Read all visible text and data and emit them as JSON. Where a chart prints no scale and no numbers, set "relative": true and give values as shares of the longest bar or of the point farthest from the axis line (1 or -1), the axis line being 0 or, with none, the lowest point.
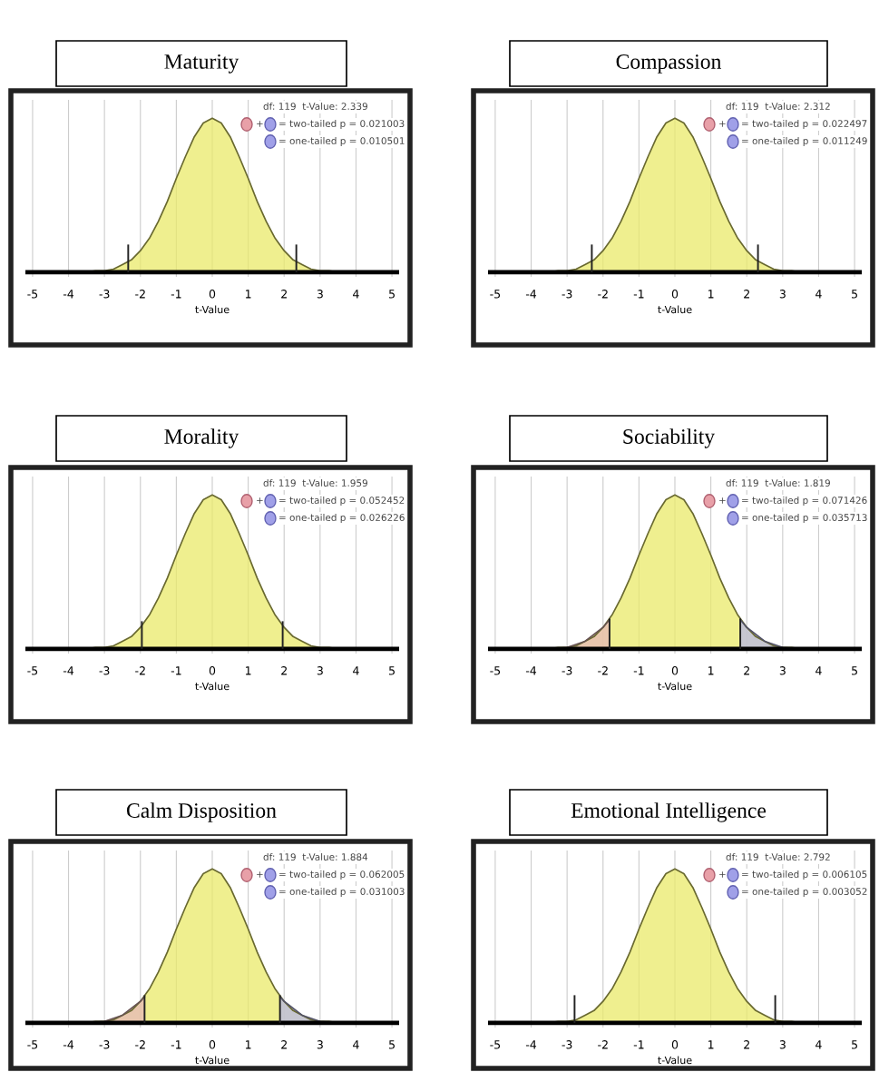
{
  "chart_data": [
    {
      "type": "area",
      "title": "Maturity",
      "relative": true,
      "xlabel": "t-Value",
      "x": [
        -5,
        -4.75,
        -4.5,
        -4.25,
        -4,
        -3.75,
        -3.5,
        -3.25,
        -3,
        -2.75,
        -2.5,
        -2.25,
        -2,
        -1.75,
        -1.5,
        -1.25,
        -1,
        -0.75,
        -0.5,
        -0.25,
        0,
        0.25,
        0.5,
        0.75,
        1,
        1.25,
        1.5,
        1.75,
        2,
        2.25,
        2.5,
        2.75,
        3,
        3.25,
        3.5,
        3.75,
        4,
        4.25,
        4.5,
        4.75,
        5
      ],
      "series": [
        {
          "color": "#eaea6a",
          "values": [
            0,
            0,
            0,
            0,
            0,
            0,
            0,
            0.01,
            0.01,
            0.02,
            0.05,
            0.08,
            0.14,
            0.22,
            0.33,
            0.46,
            0.61,
            0.75,
            0.88,
            0.97,
            1,
            0.97,
            0.88,
            0.75,
            0.61,
            0.46,
            0.33,
            0.22,
            0.14,
            0.08,
            0.05,
            0.02,
            0.01,
            0.01,
            0,
            0,
            0,
            0,
            0,
            0,
            0
          ]
        }
      ],
      "xlim": [
        -5.2,
        5.2
      ],
      "xticks": [
        -5,
        -4,
        -3,
        -2,
        -1,
        0,
        1,
        2,
        3,
        4,
        5
      ],
      "grid": "x",
      "ref_lines": [
        {
          "axis": "x",
          "value": -2.339,
          "color": "#222222"
        },
        {
          "axis": "x",
          "value": 2.339,
          "color": "#222222"
        }
      ],
      "annotations": [
        "df: 119  t-Value: 2.339",
        "+",
        "= two-tailed p = 0.021003",
        "= one-tailed p = 0.010501"
      ]
    },
    {
      "type": "area",
      "title": "Compassion",
      "relative": true,
      "xlabel": "t-Value",
      "x": [
        -5,
        -4.75,
        -4.5,
        -4.25,
        -4,
        -3.75,
        -3.5,
        -3.25,
        -3,
        -2.75,
        -2.5,
        -2.25,
        -2,
        -1.75,
        -1.5,
        -1.25,
        -1,
        -0.75,
        -0.5,
        -0.25,
        0,
        0.25,
        0.5,
        0.75,
        1,
        1.25,
        1.5,
        1.75,
        2,
        2.25,
        2.5,
        2.75,
        3,
        3.25,
        3.5,
        3.75,
        4,
        4.25,
        4.5,
        4.75,
        5
      ],
      "series": [
        {
          "color": "#eaea6a",
          "values": [
            0,
            0,
            0,
            0,
            0,
            0,
            0,
            0.01,
            0.01,
            0.02,
            0.05,
            0.08,
            0.14,
            0.22,
            0.33,
            0.46,
            0.61,
            0.75,
            0.88,
            0.97,
            1,
            0.97,
            0.88,
            0.75,
            0.61,
            0.46,
            0.33,
            0.22,
            0.14,
            0.08,
            0.05,
            0.02,
            0.01,
            0.01,
            0,
            0,
            0,
            0,
            0,
            0,
            0
          ]
        }
      ],
      "xlim": [
        -5.2,
        5.2
      ],
      "xticks": [
        -5,
        -4,
        -3,
        -2,
        -1,
        0,
        1,
        2,
        3,
        4,
        5
      ],
      "grid": "x",
      "ref_lines": [
        {
          "axis": "x",
          "value": -2.312,
          "color": "#222222"
        },
        {
          "axis": "x",
          "value": 2.312,
          "color": "#222222"
        }
      ],
      "annotations": [
        "df: 119  t-Value: 2.312",
        "+",
        "= two-tailed p = 0.022497",
        "= one-tailed p = 0.011249"
      ]
    },
    {
      "type": "area",
      "title": "Morality",
      "relative": true,
      "xlabel": "t-Value",
      "x": [
        -5,
        -4.75,
        -4.5,
        -4.25,
        -4,
        -3.75,
        -3.5,
        -3.25,
        -3,
        -2.75,
        -2.5,
        -2.25,
        -2,
        -1.75,
        -1.5,
        -1.25,
        -1,
        -0.75,
        -0.5,
        -0.25,
        0,
        0.25,
        0.5,
        0.75,
        1,
        1.25,
        1.5,
        1.75,
        2,
        2.25,
        2.5,
        2.75,
        3,
        3.25,
        3.5,
        3.75,
        4,
        4.25,
        4.5,
        4.75,
        5
      ],
      "series": [
        {
          "color": "#eaea6a",
          "values": [
            0,
            0,
            0,
            0,
            0,
            0,
            0,
            0.01,
            0.01,
            0.02,
            0.05,
            0.08,
            0.14,
            0.22,
            0.33,
            0.46,
            0.61,
            0.75,
            0.88,
            0.97,
            1,
            0.97,
            0.88,
            0.75,
            0.61,
            0.46,
            0.33,
            0.22,
            0.14,
            0.08,
            0.05,
            0.02,
            0.01,
            0.01,
            0,
            0,
            0,
            0,
            0,
            0,
            0
          ]
        }
      ],
      "xlim": [
        -5.2,
        5.2
      ],
      "xticks": [
        -5,
        -4,
        -3,
        -2,
        -1,
        0,
        1,
        2,
        3,
        4,
        5
      ],
      "grid": "x",
      "ref_lines": [
        {
          "axis": "x",
          "value": -1.959,
          "color": "#222222"
        },
        {
          "axis": "x",
          "value": 1.959,
          "color": "#222222"
        }
      ],
      "annotations": [
        "df: 119  t-Value: 1.959",
        "+",
        "= two-tailed p = 0.052452",
        "= one-tailed p = 0.026226"
      ]
    },
    {
      "type": "area",
      "title": "Sociability",
      "relative": true,
      "xlabel": "t-Value",
      "x": [
        -5,
        -4.75,
        -4.5,
        -4.25,
        -4,
        -3.75,
        -3.5,
        -3.25,
        -3,
        -2.75,
        -2.5,
        -2.25,
        -2,
        -1.75,
        -1.5,
        -1.25,
        -1,
        -0.75,
        -0.5,
        -0.25,
        0,
        0.25,
        0.5,
        0.75,
        1,
        1.25,
        1.5,
        1.75,
        2,
        2.25,
        2.5,
        2.75,
        3,
        3.25,
        3.5,
        3.75,
        4,
        4.25,
        4.5,
        4.75,
        5
      ],
      "series": [
        {
          "color": "#eaea6a",
          "values": [
            0,
            0,
            0,
            0,
            0,
            0,
            0,
            0.01,
            0.01,
            0.02,
            0.05,
            0.08,
            0.14,
            0.22,
            0.33,
            0.46,
            0.61,
            0.75,
            0.88,
            0.97,
            1,
            0.97,
            0.88,
            0.75,
            0.61,
            0.46,
            0.33,
            0.22,
            0.14,
            0.08,
            0.05,
            0.02,
            0.01,
            0.01,
            0,
            0,
            0,
            0,
            0,
            0,
            0
          ]
        },
        {
          "color": "#e6b8b8",
          "x": [
            -5,
            -4.5,
            -4,
            -3.5,
            -3,
            -2.5,
            -2,
            -1.819
          ],
          "values": [
            0,
            0,
            0,
            0,
            0.01,
            0.05,
            0.14,
            0.19
          ]
        },
        {
          "color": "#b8b8e6",
          "x": [
            1.819,
            2,
            2.5,
            3,
            3.5,
            4,
            4.5,
            5
          ],
          "values": [
            0.19,
            0.14,
            0.05,
            0.01,
            0,
            0,
            0,
            0
          ]
        }
      ],
      "xlim": [
        -5.2,
        5.2
      ],
      "xticks": [
        -5,
        -4,
        -3,
        -2,
        -1,
        0,
        1,
        2,
        3,
        4,
        5
      ],
      "grid": "x",
      "ref_lines": [
        {
          "axis": "x",
          "value": -1.819,
          "color": "#222222"
        },
        {
          "axis": "x",
          "value": 1.819,
          "color": "#222222"
        }
      ],
      "annotations": [
        "df: 119  t-Value: 1.819",
        "+",
        "= two-tailed p = 0.071426",
        "= one-tailed p = 0.035713"
      ]
    },
    {
      "type": "area",
      "title": "Calm Disposition",
      "relative": true,
      "xlabel": "t-Value",
      "x": [
        -5,
        -4.75,
        -4.5,
        -4.25,
        -4,
        -3.75,
        -3.5,
        -3.25,
        -3,
        -2.75,
        -2.5,
        -2.25,
        -2,
        -1.75,
        -1.5,
        -1.25,
        -1,
        -0.75,
        -0.5,
        -0.25,
        0,
        0.25,
        0.5,
        0.75,
        1,
        1.25,
        1.5,
        1.75,
        2,
        2.25,
        2.5,
        2.75,
        3,
        3.25,
        3.5,
        3.75,
        4,
        4.25,
        4.5,
        4.75,
        5
      ],
      "series": [
        {
          "color": "#eaea6a",
          "values": [
            0,
            0,
            0,
            0,
            0,
            0,
            0,
            0.01,
            0.01,
            0.02,
            0.05,
            0.08,
            0.14,
            0.22,
            0.33,
            0.46,
            0.61,
            0.75,
            0.88,
            0.97,
            1,
            0.97,
            0.88,
            0.75,
            0.61,
            0.46,
            0.33,
            0.22,
            0.14,
            0.08,
            0.05,
            0.02,
            0.01,
            0.01,
            0,
            0,
            0,
            0,
            0,
            0,
            0
          ]
        },
        {
          "color": "#e6b8b8",
          "x": [
            -5,
            -4.5,
            -4,
            -3.5,
            -3,
            -2.5,
            -2,
            -1.884
          ],
          "values": [
            0,
            0,
            0,
            0,
            0.01,
            0.05,
            0.14,
            0.17
          ]
        },
        {
          "color": "#b8b8e6",
          "x": [
            1.884,
            2,
            2.5,
            3,
            3.5,
            4,
            4.5,
            5
          ],
          "values": [
            0.17,
            0.14,
            0.05,
            0.01,
            0,
            0,
            0,
            0
          ]
        }
      ],
      "xlim": [
        -5.2,
        5.2
      ],
      "xticks": [
        -5,
        -4,
        -3,
        -2,
        -1,
        0,
        1,
        2,
        3,
        4,
        5
      ],
      "grid": "x",
      "ref_lines": [
        {
          "axis": "x",
          "value": -1.884,
          "color": "#222222"
        },
        {
          "axis": "x",
          "value": 1.884,
          "color": "#222222"
        }
      ],
      "annotations": [
        "df: 119  t-Value: 1.884",
        "+",
        "= two-tailed p = 0.062005",
        "= one-tailed p = 0.031003"
      ]
    },
    {
      "type": "area",
      "title": "Emotional Intelligence",
      "relative": true,
      "xlabel": "t-Value",
      "x": [
        -5,
        -4.75,
        -4.5,
        -4.25,
        -4,
        -3.75,
        -3.5,
        -3.25,
        -3,
        -2.75,
        -2.5,
        -2.25,
        -2,
        -1.75,
        -1.5,
        -1.25,
        -1,
        -0.75,
        -0.5,
        -0.25,
        0,
        0.25,
        0.5,
        0.75,
        1,
        1.25,
        1.5,
        1.75,
        2,
        2.25,
        2.5,
        2.75,
        3,
        3.25,
        3.5,
        3.75,
        4,
        4.25,
        4.5,
        4.75,
        5
      ],
      "series": [
        {
          "color": "#eaea6a",
          "values": [
            0,
            0,
            0,
            0,
            0,
            0,
            0,
            0.01,
            0.01,
            0.02,
            0.05,
            0.08,
            0.14,
            0.22,
            0.33,
            0.46,
            0.61,
            0.75,
            0.88,
            0.97,
            1,
            0.97,
            0.88,
            0.75,
            0.61,
            0.46,
            0.33,
            0.22,
            0.14,
            0.08,
            0.05,
            0.02,
            0.01,
            0.01,
            0,
            0,
            0,
            0,
            0,
            0,
            0
          ]
        }
      ],
      "xlim": [
        -5.2,
        5.2
      ],
      "xticks": [
        -5,
        -4,
        -3,
        -2,
        -1,
        0,
        1,
        2,
        3,
        4,
        5
      ],
      "grid": "x",
      "ref_lines": [
        {
          "axis": "x",
          "value": -2.792,
          "color": "#222222"
        },
        {
          "axis": "x",
          "value": 2.792,
          "color": "#222222"
        }
      ],
      "annotations": [
        "df: 119  t-Value: 2.792",
        "+",
        "= two-tailed p = 0.006105",
        "= one-tailed p = 0.003052"
      ]
    }
  ]
}
